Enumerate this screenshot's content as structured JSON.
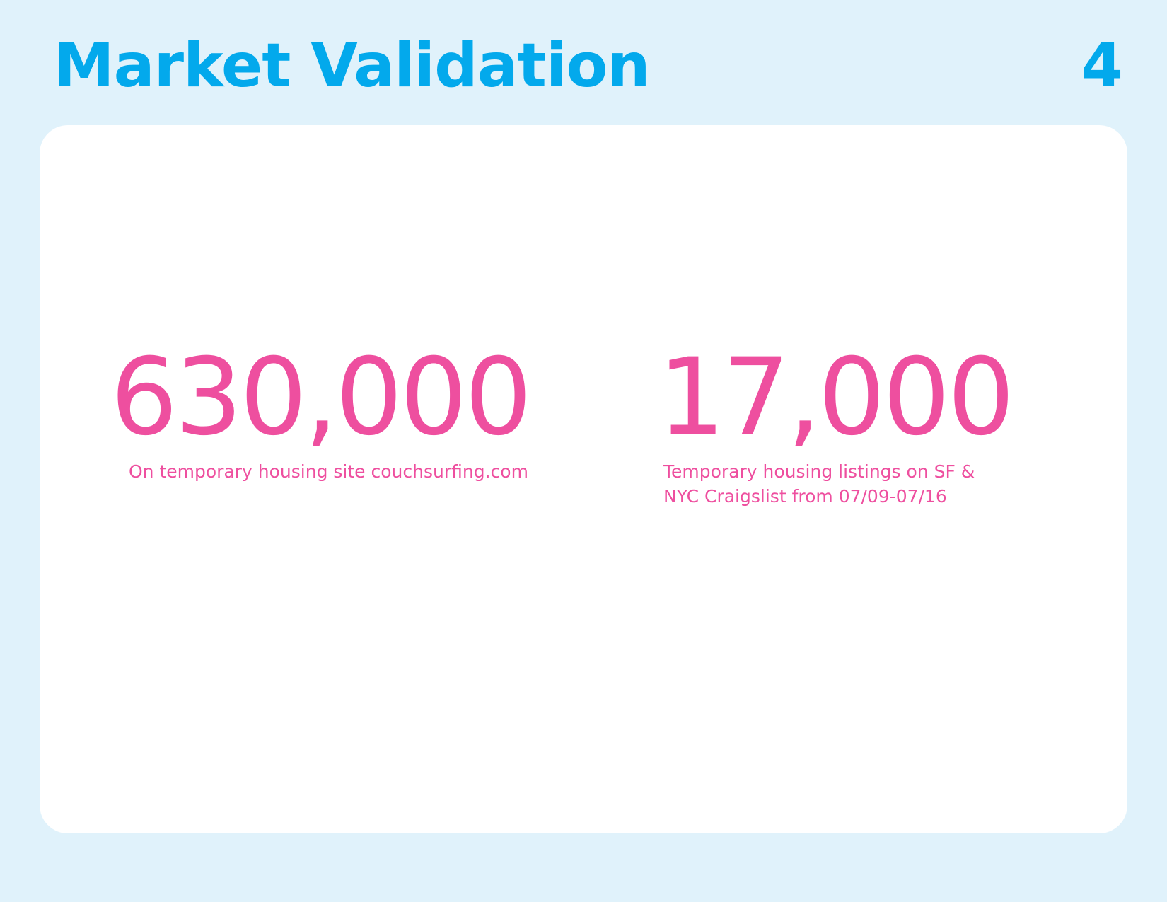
{
  "header": {
    "title": "Market Validation",
    "page_number": "4"
  },
  "stats": [
    {
      "value": "630,000",
      "caption": "On temporary housing site couchsurfing.com"
    },
    {
      "value": "17,000",
      "caption": "Temporary housing listings on SF &\nNYC Craigslist from 07/09-07/16"
    }
  ],
  "colors": {
    "background": "#e0f2fb",
    "title": "#03a9ec",
    "card": "#ffffff",
    "stat": "#ee4f9f"
  }
}
